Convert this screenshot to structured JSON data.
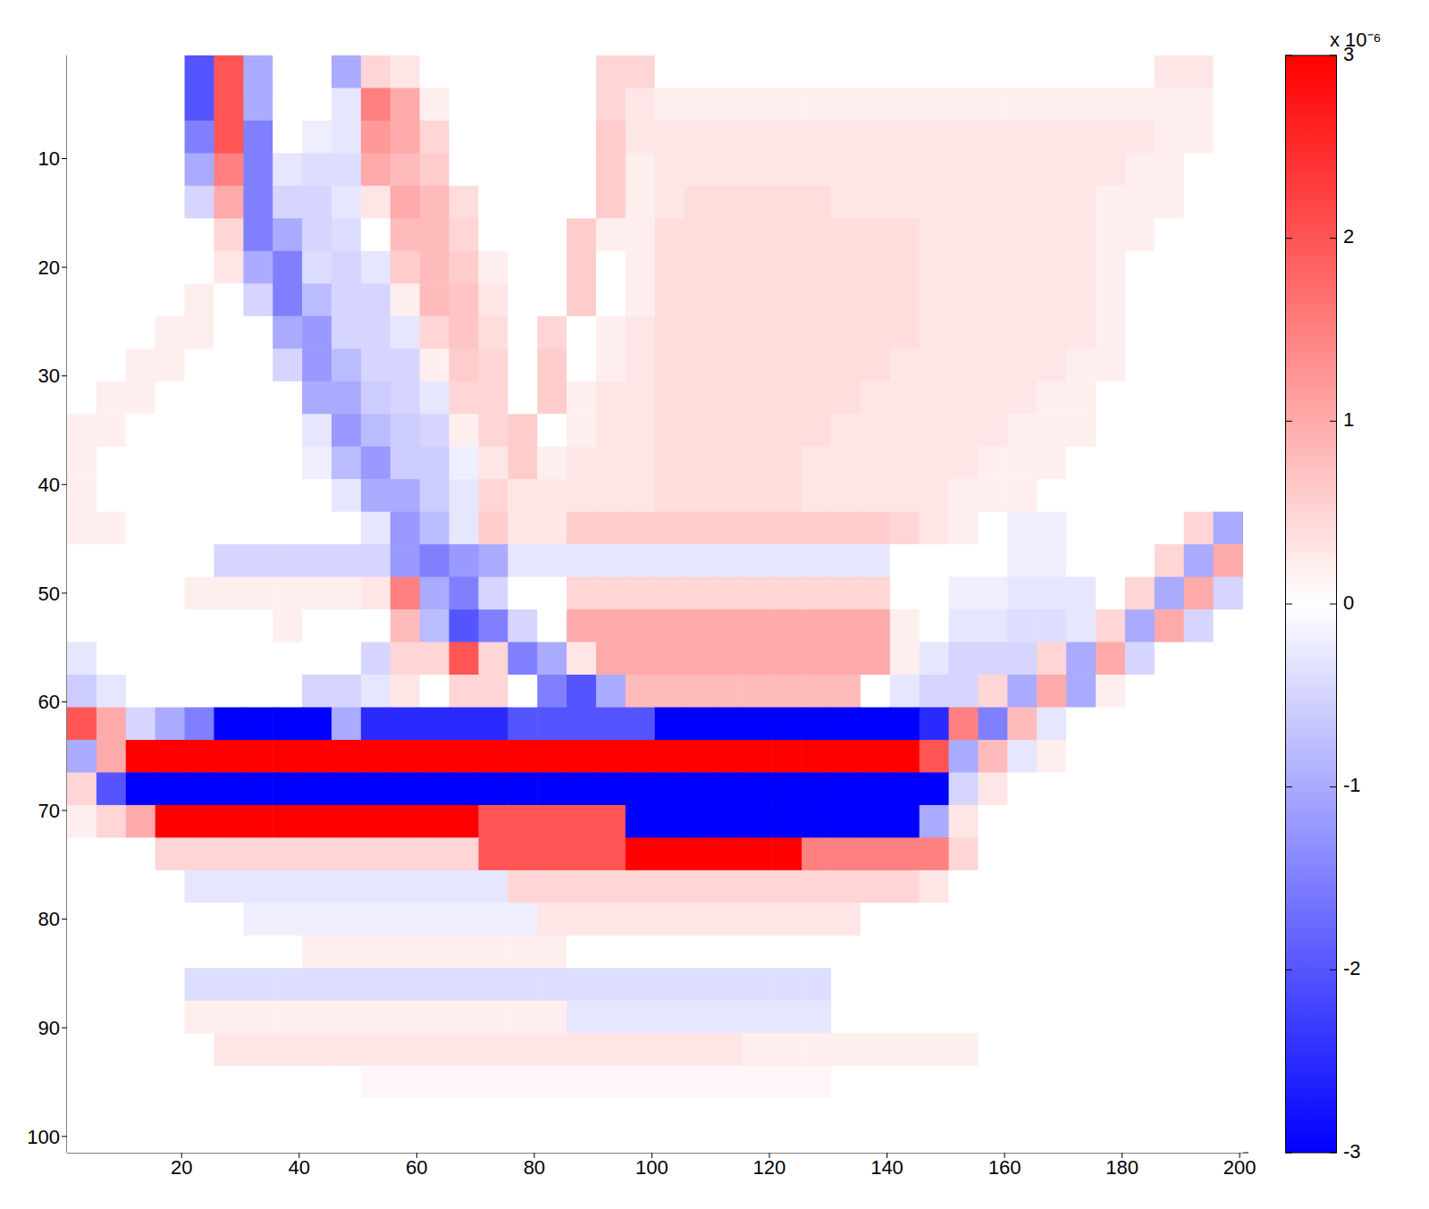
{
  "chart_data": {
    "type": "heatmap",
    "x": [
      3,
      8,
      13,
      18,
      23,
      28,
      33,
      38,
      43,
      48,
      53,
      58,
      63,
      68,
      73,
      78,
      83,
      88,
      93,
      98,
      103,
      108,
      113,
      118,
      123,
      128,
      133,
      138,
      143,
      148,
      153,
      158,
      163,
      168,
      173,
      178,
      183,
      188,
      193,
      198
    ],
    "y": [
      2,
      5,
      8,
      11,
      14,
      17,
      20,
      23,
      26,
      29,
      32,
      35,
      38,
      41,
      44,
      47,
      50,
      53,
      56,
      59,
      62,
      65,
      68,
      71,
      74,
      77,
      80,
      83,
      86,
      89,
      92,
      95,
      98,
      101
    ],
    "cells": [
      [
        0,
        0,
        0,
        0,
        -2,
        2,
        -1,
        0,
        0,
        -1,
        0.5,
        0.3,
        0,
        0,
        0,
        0,
        0,
        0,
        0.5,
        0.5,
        0,
        0,
        0,
        0,
        0,
        0,
        0,
        0,
        0,
        0,
        0,
        0,
        0,
        0,
        0,
        0,
        0,
        0.3,
        0.3,
        0
      ],
      [
        0,
        0,
        0,
        0,
        -2,
        2,
        -1,
        0,
        0,
        -0.3,
        1.5,
        1,
        0.2,
        0,
        0,
        0,
        0,
        0,
        0.5,
        0.3,
        0.2,
        0.2,
        0.2,
        0.2,
        0.2,
        0.2,
        0.2,
        0.2,
        0.2,
        0.2,
        0.2,
        0.2,
        0.2,
        0.2,
        0.2,
        0.2,
        0.2,
        0.2,
        0.2,
        0
      ],
      [
        0,
        0,
        0,
        0,
        -1.5,
        2,
        -1.5,
        0,
        -0.2,
        -0.3,
        1.2,
        1,
        0.5,
        0,
        0,
        0,
        0,
        0,
        0.6,
        0.3,
        0.3,
        0.3,
        0.3,
        0.3,
        0.3,
        0.3,
        0.3,
        0.3,
        0.3,
        0.3,
        0.3,
        0.3,
        0.3,
        0.3,
        0.3,
        0.3,
        0.3,
        0.2,
        0.2,
        0
      ],
      [
        0,
        0,
        0,
        0,
        -1,
        1.5,
        -1.5,
        -0.3,
        -0.4,
        -0.4,
        1,
        0.8,
        0.6,
        0,
        0,
        0,
        0,
        0,
        0.6,
        0.2,
        0.3,
        0.3,
        0.3,
        0.3,
        0.3,
        0.3,
        0.3,
        0.3,
        0.3,
        0.3,
        0.3,
        0.3,
        0.3,
        0.3,
        0.3,
        0.3,
        0.2,
        0.2,
        0,
        0
      ],
      [
        0,
        0,
        0,
        0,
        -0.5,
        1,
        -1.5,
        -0.5,
        -0.5,
        -0.3,
        0.3,
        1,
        0.8,
        0.4,
        0,
        0,
        0,
        0,
        0.6,
        0.2,
        0.3,
        0.4,
        0.4,
        0.4,
        0.4,
        0.4,
        0.3,
        0.3,
        0.3,
        0.3,
        0.3,
        0.3,
        0.3,
        0.3,
        0.3,
        0.2,
        0.2,
        0.2,
        0,
        0
      ],
      [
        0,
        0,
        0,
        0,
        0,
        0.5,
        -1.5,
        -1,
        -0.5,
        -0.4,
        0,
        0.8,
        0.8,
        0.5,
        0,
        0,
        0,
        0.6,
        0.2,
        0.2,
        0.4,
        0.4,
        0.4,
        0.4,
        0.4,
        0.4,
        0.4,
        0.4,
        0.4,
        0.3,
        0.3,
        0.3,
        0.3,
        0.3,
        0.3,
        0.2,
        0.2,
        0,
        0,
        0
      ],
      [
        0,
        0,
        0,
        0,
        0,
        0.3,
        -1,
        -1.5,
        -0.4,
        -0.5,
        -0.3,
        0.6,
        0.8,
        0.6,
        0.2,
        0,
        0,
        0.6,
        0,
        0.2,
        0.4,
        0.4,
        0.4,
        0.4,
        0.4,
        0.4,
        0.4,
        0.4,
        0.4,
        0.3,
        0.3,
        0.3,
        0.3,
        0.3,
        0.3,
        0.2,
        0,
        0,
        0,
        0
      ],
      [
        0,
        0,
        0,
        0,
        0.2,
        0,
        -0.5,
        -1.5,
        -0.8,
        -0.5,
        -0.5,
        0.2,
        0.8,
        0.7,
        0.3,
        0,
        0,
        0.6,
        0,
        0.2,
        0.4,
        0.4,
        0.4,
        0.4,
        0.4,
        0.4,
        0.4,
        0.4,
        0.4,
        0.3,
        0.3,
        0.3,
        0.3,
        0.3,
        0.3,
        0.2,
        0,
        0,
        0,
        0
      ],
      [
        0,
        0,
        0,
        0.2,
        0.2,
        0,
        0,
        -1,
        -1.2,
        -0.5,
        -0.5,
        -0.3,
        0.5,
        0.7,
        0.4,
        0,
        0.5,
        0,
        0.2,
        0.3,
        0.4,
        0.4,
        0.4,
        0.4,
        0.4,
        0.4,
        0.4,
        0.4,
        0.4,
        0.3,
        0.3,
        0.3,
        0.3,
        0.3,
        0.3,
        0.2,
        0,
        0,
        0,
        0
      ],
      [
        0,
        0,
        0.2,
        0.2,
        0,
        0,
        0,
        -0.5,
        -1.2,
        -0.8,
        -0.5,
        -0.5,
        0.2,
        0.6,
        0.5,
        0,
        0.6,
        0,
        0.2,
        0.3,
        0.4,
        0.4,
        0.4,
        0.4,
        0.4,
        0.4,
        0.4,
        0.4,
        0.3,
        0.3,
        0.3,
        0.3,
        0.3,
        0.3,
        0.2,
        0.2,
        0,
        0,
        0,
        0
      ],
      [
        0,
        0.2,
        0.2,
        0,
        0,
        0,
        0,
        0,
        -1,
        -1,
        -0.6,
        -0.5,
        -0.3,
        0.5,
        0.5,
        0,
        0.6,
        0.2,
        0.3,
        0.3,
        0.4,
        0.4,
        0.4,
        0.4,
        0.4,
        0.4,
        0.4,
        0.3,
        0.3,
        0.3,
        0.3,
        0.3,
        0.3,
        0.2,
        0.2,
        0,
        0,
        0,
        0,
        0
      ],
      [
        0.2,
        0.2,
        0,
        0,
        0,
        0,
        0,
        0,
        -0.3,
        -1.2,
        -0.8,
        -0.6,
        -0.5,
        0.2,
        0.5,
        0.6,
        0,
        0.2,
        0.3,
        0.3,
        0.4,
        0.4,
        0.4,
        0.4,
        0.4,
        0.4,
        0.3,
        0.3,
        0.3,
        0.3,
        0.3,
        0.3,
        0.2,
        0.2,
        0.2,
        0,
        0,
        0,
        0,
        0
      ],
      [
        0.2,
        0,
        0,
        0,
        0,
        0,
        0,
        0,
        -0.2,
        -0.8,
        -1.2,
        -0.6,
        -0.6,
        -0.2,
        0.3,
        0.6,
        0.2,
        0.3,
        0.3,
        0.3,
        0.4,
        0.4,
        0.4,
        0.4,
        0.4,
        0.3,
        0.3,
        0.3,
        0.3,
        0.3,
        0.3,
        0.2,
        0.2,
        0.2,
        0,
        0,
        0,
        0,
        0,
        0
      ],
      [
        0.2,
        0,
        0,
        0,
        0,
        0,
        0,
        0,
        0,
        -0.3,
        -1,
        -1,
        -0.6,
        -0.3,
        0.5,
        0.3,
        0.3,
        0.3,
        0.3,
        0.3,
        0.4,
        0.4,
        0.4,
        0.4,
        0.4,
        0.3,
        0.3,
        0.3,
        0.3,
        0.3,
        0.2,
        0.2,
        0.2,
        0,
        0,
        0,
        0,
        0,
        0,
        0
      ],
      [
        0.2,
        0.2,
        0,
        0,
        0,
        0,
        0,
        0,
        0,
        0,
        -0.3,
        -1.2,
        -0.8,
        -0.3,
        0.6,
        0.3,
        0.3,
        0.6,
        0.6,
        0.6,
        0.6,
        0.6,
        0.6,
        0.6,
        0.6,
        0.6,
        0.6,
        0.6,
        0.5,
        0.3,
        0.2,
        0,
        -0.2,
        -0.2,
        0,
        0,
        0,
        0,
        0.5,
        -1
      ],
      [
        0,
        0,
        0,
        0,
        0,
        -0.5,
        -0.5,
        -0.5,
        -0.5,
        -0.5,
        -0.5,
        -1.2,
        -1.5,
        -1.2,
        -1,
        -0.3,
        -0.3,
        -0.3,
        -0.3,
        -0.3,
        -0.3,
        -0.3,
        -0.3,
        -0.3,
        -0.3,
        -0.3,
        -0.3,
        -0.3,
        0,
        0,
        0,
        0,
        -0.2,
        -0.2,
        0,
        0,
        0,
        0.5,
        -1,
        1
      ],
      [
        0,
        0,
        0,
        0,
        0.2,
        0.2,
        0.2,
        0.2,
        0.2,
        0.2,
        0.3,
        1.5,
        -1,
        -1.5,
        -0.5,
        0,
        0,
        0.5,
        0.5,
        0.5,
        0.5,
        0.5,
        0.5,
        0.5,
        0.5,
        0.5,
        0.5,
        0.5,
        0,
        0,
        -0.2,
        -0.2,
        -0.3,
        -0.3,
        -0.3,
        0,
        0.5,
        -1,
        1,
        -0.5
      ],
      [
        0,
        0,
        0,
        0,
        0,
        0,
        0,
        0.2,
        0,
        0,
        0,
        0.8,
        -0.8,
        -2,
        -1.5,
        -0.5,
        0,
        1,
        1,
        1,
        1,
        1,
        1,
        1,
        1,
        1,
        1,
        1,
        0.2,
        0,
        -0.3,
        -0.3,
        -0.4,
        -0.4,
        -0.3,
        0.5,
        -1,
        1,
        -0.5,
        0
      ],
      [
        -0.3,
        0,
        0,
        0,
        0,
        0,
        0,
        0,
        0,
        0,
        -0.5,
        0.5,
        0.5,
        2,
        0.5,
        -1.5,
        -1,
        0.3,
        1,
        1,
        1,
        1,
        1,
        1,
        1,
        1,
        1,
        1,
        0.2,
        -0.3,
        -0.5,
        -0.5,
        -0.5,
        0.5,
        -1,
        1,
        -0.5,
        0,
        0,
        0
      ],
      [
        -0.6,
        -0.3,
        0,
        0,
        0,
        0,
        0,
        0,
        -0.5,
        -0.5,
        -0.3,
        0.3,
        0,
        0.5,
        0.5,
        0,
        -1.5,
        -2,
        -1,
        0.8,
        0.8,
        0.8,
        0.8,
        0.8,
        0.8,
        0.8,
        0.8,
        0,
        -0.3,
        -0.5,
        -0.5,
        0.5,
        -1,
        1,
        -1,
        0.2,
        0,
        0,
        0,
        0
      ],
      [
        2,
        1,
        -0.5,
        -1,
        -1.5,
        -3,
        -3,
        -3,
        -3,
        -1,
        -2.5,
        -2.5,
        -2.5,
        -2.5,
        -2.5,
        -2,
        -2,
        -2,
        -2,
        -2,
        -3,
        -3,
        -3,
        -3,
        -3,
        -3,
        -3,
        -3,
        -3,
        -2.5,
        1.5,
        -1.5,
        0.8,
        -0.3,
        0,
        0,
        0,
        0,
        0,
        0
      ],
      [
        -1,
        1,
        3,
        3,
        3,
        3,
        3,
        3,
        3,
        3,
        3,
        3,
        3,
        3,
        3,
        3,
        3,
        3,
        3,
        3,
        3,
        3,
        3,
        3,
        3,
        3,
        3,
        3,
        3,
        2,
        -1,
        0.8,
        -0.3,
        0.2,
        0,
        0,
        0,
        0,
        0,
        0
      ],
      [
        0.5,
        -2,
        -3,
        -3,
        -3,
        -3,
        -3,
        -3,
        -3,
        -3,
        -3,
        -3,
        -3,
        -3,
        -3,
        -3,
        -3,
        -3,
        -3,
        -3,
        -3,
        -3,
        -3,
        -3,
        -3,
        -3,
        -3,
        -3,
        -3,
        -3,
        -0.5,
        0.3,
        0,
        0,
        0,
        0,
        0,
        0,
        0,
        0
      ],
      [
        0.2,
        0.5,
        1,
        3,
        3,
        3,
        3,
        3,
        3,
        3,
        3,
        3,
        3,
        3,
        2,
        2,
        2,
        2,
        2,
        -3,
        -3,
        -3,
        -3,
        -3,
        -3,
        -3,
        -3,
        -3,
        -3,
        -1,
        0.3,
        0,
        0,
        0,
        0,
        0,
        0,
        0,
        0,
        0
      ],
      [
        0,
        0,
        0,
        0.5,
        0.5,
        0.5,
        0.5,
        0.5,
        0.5,
        0.5,
        0.5,
        0.5,
        0.5,
        0.5,
        2,
        2,
        2,
        2,
        2,
        3,
        3,
        3,
        3,
        3,
        3,
        1.5,
        1.5,
        1.5,
        1.5,
        1.5,
        0.5,
        0,
        0,
        0,
        0,
        0,
        0,
        0,
        0,
        0
      ],
      [
        0,
        0,
        0,
        0,
        -0.3,
        -0.3,
        -0.3,
        -0.3,
        -0.3,
        -0.3,
        -0.3,
        -0.3,
        -0.3,
        -0.3,
        -0.3,
        0.5,
        0.5,
        0.5,
        0.5,
        0.5,
        0.5,
        0.5,
        0.5,
        0.5,
        0.5,
        0.5,
        0.5,
        0.5,
        0.5,
        0.3,
        0,
        0,
        0,
        0,
        0,
        0,
        0,
        0,
        0,
        0
      ],
      [
        0,
        0,
        0,
        0,
        0,
        0,
        -0.2,
        -0.2,
        -0.2,
        -0.2,
        -0.2,
        -0.2,
        -0.2,
        -0.2,
        -0.2,
        -0.2,
        0.3,
        0.3,
        0.3,
        0.3,
        0.3,
        0.3,
        0.3,
        0.3,
        0.3,
        0.3,
        0.3,
        0,
        0,
        0,
        0,
        0,
        0,
        0,
        0,
        0,
        0,
        0,
        0,
        0
      ],
      [
        0,
        0,
        0,
        0,
        0,
        0,
        0,
        0,
        0.2,
        0.2,
        0.2,
        0.2,
        0.2,
        0.2,
        0.2,
        0.2,
        0.2,
        0,
        0,
        0,
        0,
        0,
        0,
        0,
        0,
        0,
        0,
        0,
        0,
        0,
        0,
        0,
        0,
        0,
        0,
        0,
        0,
        0,
        0,
        0
      ],
      [
        0,
        0,
        0,
        0,
        -0.4,
        -0.4,
        -0.4,
        -0.4,
        -0.4,
        -0.4,
        -0.4,
        -0.4,
        -0.4,
        -0.4,
        -0.4,
        -0.4,
        -0.4,
        -0.4,
        -0.4,
        -0.4,
        -0.4,
        -0.4,
        -0.4,
        -0.4,
        -0.4,
        -0.4,
        0,
        0,
        0,
        0,
        0,
        0,
        0,
        0,
        0,
        0,
        0,
        0,
        0,
        0
      ],
      [
        0,
        0,
        0,
        0,
        0.2,
        0.2,
        0.2,
        0.2,
        0.2,
        0.2,
        0.2,
        0.2,
        0.2,
        0.2,
        0.2,
        0.2,
        0.2,
        -0.3,
        -0.3,
        -0.3,
        -0.3,
        -0.3,
        -0.3,
        -0.3,
        -0.3,
        -0.3,
        0,
        0,
        0,
        0,
        0,
        0,
        0,
        0,
        0,
        0,
        0,
        0,
        0,
        0
      ],
      [
        0,
        0,
        0,
        0,
        0,
        0.3,
        0.3,
        0.3,
        0.3,
        0.3,
        0.3,
        0.3,
        0.3,
        0.3,
        0.3,
        0.3,
        0.3,
        0.3,
        0.3,
        0.3,
        0.3,
        0.3,
        0.3,
        0.2,
        0.2,
        0.2,
        0.2,
        0.2,
        0.2,
        0.2,
        0.2,
        0,
        0,
        0,
        0,
        0,
        0,
        0,
        0,
        0
      ],
      [
        0,
        0,
        0,
        0,
        0,
        0,
        0,
        0,
        0,
        0,
        0.1,
        0.1,
        0.1,
        0.1,
        0.1,
        0.1,
        0.1,
        0.1,
        0.1,
        0.1,
        0.1,
        0.1,
        0.1,
        0.1,
        0.1,
        0.1,
        0,
        0,
        0,
        0,
        0,
        0,
        0,
        0,
        0,
        0,
        0,
        0,
        0,
        0
      ],
      [
        0,
        0,
        0,
        0,
        0,
        0,
        0,
        0,
        0,
        0,
        0,
        0,
        0,
        0,
        0,
        0,
        0,
        0,
        0,
        0,
        0,
        0,
        0,
        0,
        0,
        0,
        0,
        0,
        0,
        0,
        0,
        0,
        0,
        0,
        0,
        0,
        0,
        0,
        0,
        0
      ],
      [
        0,
        0,
        0,
        0,
        0,
        0,
        0,
        0,
        0,
        0,
        0,
        0,
        0,
        0,
        0,
        0,
        0,
        0,
        0,
        0,
        0,
        0,
        0,
        0,
        0,
        0,
        0,
        0,
        0,
        0,
        0,
        0,
        0,
        0,
        0,
        0,
        0,
        0,
        0,
        0
      ]
    ],
    "xlim": [
      0.5,
      201.5
    ],
    "ylim": [
      0.5,
      101.5
    ],
    "xticks": [
      20,
      40,
      60,
      80,
      100,
      120,
      140,
      160,
      180,
      200
    ],
    "yticks": [
      10,
      20,
      30,
      40,
      50,
      60,
      70,
      80,
      90,
      100
    ],
    "colorbar": {
      "lim": [
        -3,
        3
      ],
      "ticks": [
        -3,
        -2,
        -1,
        0,
        1,
        2,
        3
      ],
      "label": "x 10⁻⁶"
    }
  }
}
